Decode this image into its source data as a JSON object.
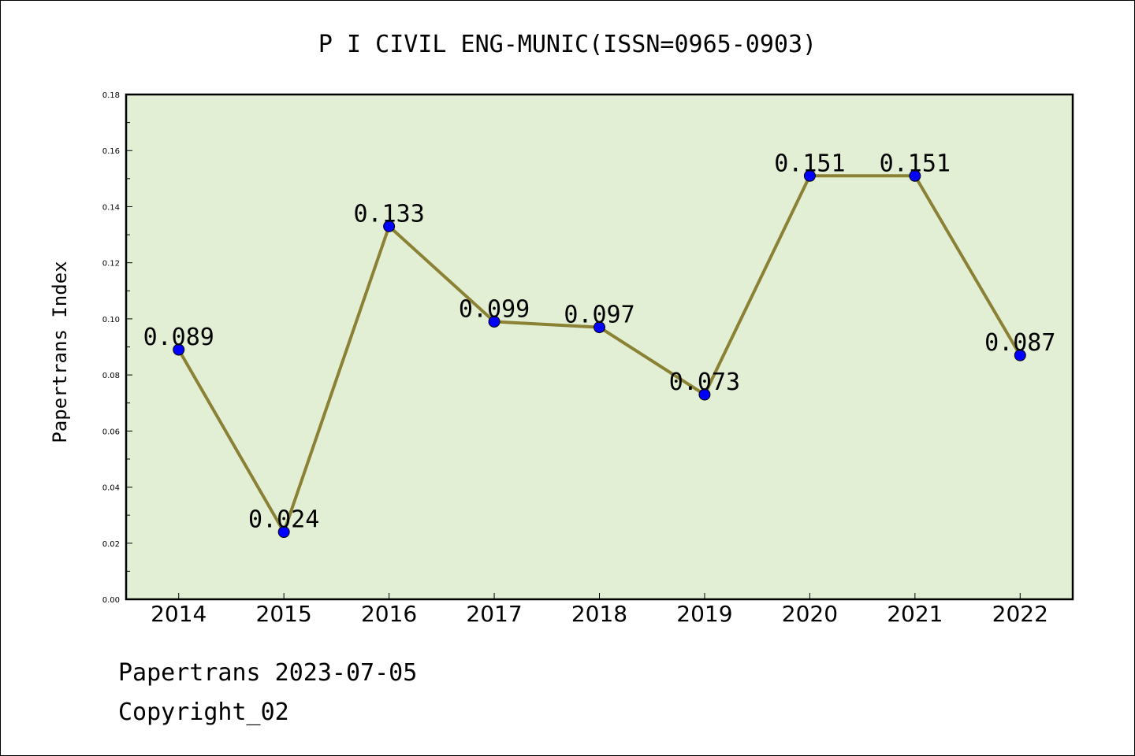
{
  "chart_data": {
    "type": "line",
    "title": "P I CIVIL ENG-MUNIC(ISSN=0965-0903)",
    "ylabel": "Papertrans Index",
    "xlabel": "",
    "categories": [
      "2014",
      "2015",
      "2016",
      "2017",
      "2018",
      "2019",
      "2020",
      "2021",
      "2022"
    ],
    "values": [
      0.089,
      0.024,
      0.133,
      0.099,
      0.097,
      0.073,
      0.151,
      0.151,
      0.087
    ],
    "data_labels": [
      "0.089",
      "0.024",
      "0.133",
      "0.099",
      "0.097",
      "0.073",
      "0.151",
      "0.151",
      "0.087"
    ],
    "ylim": [
      0,
      0.18
    ],
    "yticks": [
      "0.00",
      "0.02",
      "0.04",
      "0.06",
      "0.08",
      "0.10",
      "0.12",
      "0.14",
      "0.16",
      "0.18"
    ],
    "grid": false,
    "legend": "none",
    "colors": {
      "plot_background": "#e2efd5",
      "line": "#8b8134",
      "marker": "#0000ff"
    }
  },
  "footer": {
    "date_line": "Papertrans 2023-07-05",
    "copyright_line": "Copyright_02"
  }
}
